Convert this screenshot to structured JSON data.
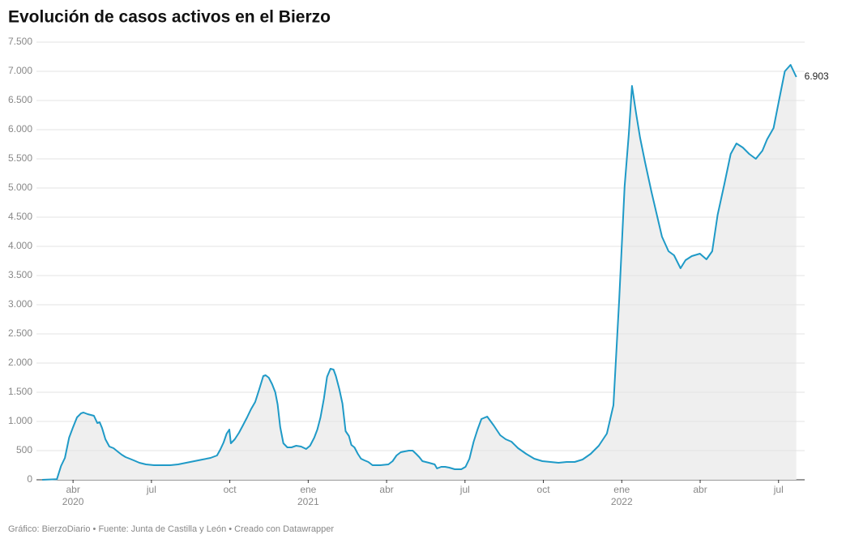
{
  "chart_data": {
    "type": "area_line",
    "title": "Evolución de casos activos en el Bierzo",
    "footer": "Gráfico: BierzoDiario • Fuente: Junta de Castilla y León • Creado con Datawrapper",
    "end_label": "6.903",
    "xlim": [
      1.6,
      31
    ],
    "xticks": [
      {
        "value": 3,
        "label": "abr"
      },
      {
        "value": 6,
        "label": "jul"
      },
      {
        "value": 9,
        "label": "oct"
      },
      {
        "value": 12,
        "label": "ene"
      },
      {
        "value": 15,
        "label": "abr"
      },
      {
        "value": 18,
        "label": "jul"
      },
      {
        "value": 21,
        "label": "oct"
      },
      {
        "value": 24,
        "label": "ene"
      },
      {
        "value": 27,
        "label": "abr"
      },
      {
        "value": 30,
        "label": "jul"
      }
    ],
    "xtick_years": [
      {
        "value": 3,
        "label": "2020"
      },
      {
        "value": 12,
        "label": "2021"
      },
      {
        "value": 24,
        "label": "2022"
      }
    ],
    "ylim": [
      0,
      7500
    ],
    "yticks": [
      0,
      500,
      {
        "value": 1000,
        "label": "1.000"
      },
      {
        "value": 1500,
        "label": "1.500"
      },
      {
        "value": 2000,
        "label": "2.000"
      },
      {
        "value": 2500,
        "label": "2.500"
      },
      {
        "value": 3000,
        "label": "3.000"
      },
      {
        "value": 3500,
        "label": "3.500"
      },
      {
        "value": 4000,
        "label": "4.000"
      },
      {
        "value": 4500,
        "label": "4.500"
      },
      {
        "value": 5000,
        "label": "5.000"
      },
      {
        "value": 5500,
        "label": "5.500"
      },
      {
        "value": 6000,
        "label": "6.000"
      },
      {
        "value": 6500,
        "label": "6.500"
      },
      {
        "value": 7000,
        "label": "7.000"
      },
      {
        "value": 7500,
        "label": "7.500"
      }
    ],
    "grid": true,
    "color": "#1f9ac7",
    "fill_color": "#efefef",
    "x": [
      1.82,
      2.38,
      2.54,
      2.69,
      2.85,
      3.0,
      3.15,
      3.31,
      3.4,
      3.56,
      3.68,
      3.8,
      3.93,
      4.02,
      4.11,
      4.24,
      4.39,
      4.55,
      4.7,
      4.86,
      5.01,
      5.17,
      5.32,
      5.54,
      5.79,
      6.1,
      6.41,
      6.72,
      7.02,
      7.33,
      7.64,
      7.95,
      8.26,
      8.51,
      8.63,
      8.76,
      8.88,
      8.98,
      9.04,
      9.19,
      9.35,
      9.5,
      9.66,
      9.81,
      9.97,
      10.12,
      10.28,
      10.37,
      10.49,
      10.62,
      10.74,
      10.83,
      10.93,
      11.05,
      11.2,
      11.36,
      11.54,
      11.73,
      11.92,
      12.07,
      12.23,
      12.35,
      12.47,
      12.6,
      12.72,
      12.85,
      12.97,
      13.06,
      13.19,
      13.31,
      13.43,
      13.56,
      13.65,
      13.77,
      13.9,
      14.02,
      14.15,
      14.3,
      14.46,
      14.76,
      15.07,
      15.23,
      15.38,
      15.54,
      15.69,
      15.85,
      16.0,
      16.13,
      16.25,
      16.37,
      16.62,
      16.84,
      16.93,
      17.09,
      17.24,
      17.4,
      17.61,
      17.86,
      18.02,
      18.17,
      18.33,
      18.48,
      18.63,
      18.85,
      19.1,
      19.35,
      19.56,
      19.78,
      20.03,
      20.34,
      20.65,
      20.96,
      21.27,
      21.58,
      21.89,
      22.2,
      22.5,
      22.81,
      23.12,
      23.43,
      23.68,
      23.9,
      24.11,
      24.27,
      24.39,
      24.55,
      24.7,
      24.89,
      25.14,
      25.35,
      25.54,
      25.79,
      26.0,
      26.25,
      26.44,
      26.68,
      26.99,
      27.24,
      27.46,
      27.67,
      27.92,
      28.17,
      28.39,
      28.63,
      28.88,
      29.13,
      29.38,
      29.56,
      29.81,
      30.03,
      30.24,
      30.46,
      30.68
    ],
    "values": [
      0,
      10,
      236,
      375,
      722,
      900,
      1069,
      1140,
      1153,
      1125,
      1111,
      1097,
      972,
      986,
      889,
      694,
      569,
      542,
      486,
      431,
      389,
      361,
      333,
      292,
      264,
      250,
      250,
      250,
      264,
      292,
      319,
      347,
      375,
      417,
      514,
      639,
      792,
      861,
      625,
      694,
      806,
      931,
      1069,
      1208,
      1333,
      1542,
      1778,
      1792,
      1750,
      1639,
      1500,
      1292,
      903,
      625,
      556,
      556,
      583,
      569,
      528,
      583,
      722,
      861,
      1069,
      1389,
      1764,
      1903,
      1889,
      1778,
      1556,
      1306,
      833,
      750,
      597,
      556,
      444,
      361,
      333,
      306,
      250,
      250,
      264,
      319,
      417,
      472,
      486,
      500,
      500,
      444,
      389,
      319,
      292,
      264,
      194,
      222,
      222,
      208,
      181,
      181,
      222,
      361,
      653,
      861,
      1042,
      1083,
      931,
      764,
      694,
      653,
      542,
      444,
      361,
      319,
      306,
      292,
      306,
      306,
      347,
      444,
      583,
      792,
      1278,
      3083,
      5028,
      5931,
      6750,
      6278,
      5861,
      5444,
      4931,
      4528,
      4167,
      3917,
      3847,
      3625,
      3764,
      3833,
      3875,
      3778,
      3917,
      4542,
      5056,
      5583,
      5764,
      5694,
      5583,
      5500,
      5639,
      5833,
      6028,
      6528,
      7000,
      7111,
      6903
    ]
  }
}
